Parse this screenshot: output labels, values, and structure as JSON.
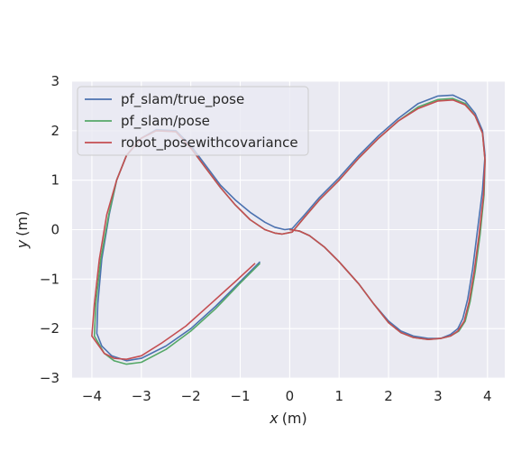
{
  "chart_data": {
    "type": "line",
    "xlabel_var": "x",
    "xlabel_unit": "(m)",
    "ylabel_var": "y",
    "ylabel_unit": "(m)",
    "xlim": [
      -4.4,
      4.35
    ],
    "ylim": [
      -3.0,
      3.0
    ],
    "xticks": [
      -4,
      -3,
      -2,
      -1,
      0,
      1,
      2,
      3,
      4
    ],
    "yticks": [
      -3,
      -2,
      -1,
      0,
      1,
      2,
      3
    ],
    "xtick_labels": [
      "−4",
      "−3",
      "−2",
      "−1",
      "0",
      "1",
      "2",
      "3",
      "4"
    ],
    "ytick_labels": [
      "−3",
      "−2",
      "−1",
      "0",
      "1",
      "2",
      "3"
    ],
    "grid": true,
    "legend_position": "top-left",
    "colors": {
      "background": "#eaeaf2",
      "grid": "#ffffff",
      "text": "#262626"
    },
    "series": [
      {
        "name": "pf_slam/true_pose",
        "color": "#4c72b0",
        "x": [
          -0.6,
          -1.0,
          -1.5,
          -2.0,
          -2.5,
          -3.0,
          -3.3,
          -3.6,
          -3.8,
          -3.9,
          -3.88,
          -3.8,
          -3.65,
          -3.5,
          -3.3,
          -3.0,
          -2.7,
          -2.3,
          -2.0,
          -1.7,
          -1.4,
          -1.1,
          -0.8,
          -0.5,
          -0.3,
          -0.1,
          0.05,
          0.3,
          0.6,
          1.0,
          1.4,
          1.8,
          2.2,
          2.6,
          3.0,
          3.3,
          3.55,
          3.75,
          3.9,
          3.95,
          3.9,
          3.8,
          3.7,
          3.6,
          3.5,
          3.4,
          3.25,
          3.05,
          2.8,
          2.5,
          2.25,
          2.0,
          1.7,
          1.4,
          1.0,
          0.7,
          0.4,
          0.2,
          0.0
        ],
        "y": [
          -0.65,
          -1.05,
          -1.55,
          -2.0,
          -2.35,
          -2.6,
          -2.65,
          -2.55,
          -2.35,
          -2.1,
          -1.5,
          -0.6,
          0.3,
          1.0,
          1.5,
          1.85,
          2.02,
          2.0,
          1.7,
          1.3,
          0.9,
          0.6,
          0.35,
          0.15,
          0.05,
          0.0,
          0.02,
          0.3,
          0.65,
          1.05,
          1.5,
          1.9,
          2.25,
          2.55,
          2.7,
          2.72,
          2.6,
          2.35,
          2.0,
          1.5,
          0.8,
          0.0,
          -0.8,
          -1.4,
          -1.8,
          -2.0,
          -2.12,
          -2.2,
          -2.2,
          -2.15,
          -2.05,
          -1.85,
          -1.5,
          -1.1,
          -0.65,
          -0.35,
          -0.12,
          -0.03,
          0.0
        ]
      },
      {
        "name": "pf_slam/pose",
        "color": "#55a868",
        "x": [
          -0.6,
          -1.0,
          -1.5,
          -2.0,
          -2.5,
          -3.0,
          -3.3,
          -3.55,
          -3.75,
          -3.95,
          -3.92,
          -3.82,
          -3.66,
          -3.5,
          -3.3,
          -3.0,
          -2.7,
          -2.3,
          -2.0,
          -1.7,
          -1.4,
          -1.1,
          -0.8,
          -0.5,
          -0.3,
          -0.15,
          0.05,
          0.3,
          0.6,
          1.0,
          1.4,
          1.8,
          2.2,
          2.6,
          3.0,
          3.3,
          3.55,
          3.75,
          3.9,
          3.95,
          3.93,
          3.85,
          3.75,
          3.65,
          3.55,
          3.42,
          3.25,
          3.05,
          2.8,
          2.5,
          2.25,
          2.0,
          1.7,
          1.4,
          1.0,
          0.7,
          0.4,
          0.2,
          0.0
        ],
        "y": [
          -0.68,
          -1.08,
          -1.6,
          -2.05,
          -2.42,
          -2.68,
          -2.72,
          -2.65,
          -2.5,
          -2.15,
          -1.5,
          -0.6,
          0.3,
          1.0,
          1.5,
          1.85,
          2.0,
          1.98,
          1.65,
          1.25,
          0.85,
          0.5,
          0.2,
          0.0,
          -0.07,
          -0.09,
          -0.05,
          0.25,
          0.6,
          1.0,
          1.45,
          1.85,
          2.2,
          2.48,
          2.63,
          2.65,
          2.55,
          2.3,
          1.95,
          1.4,
          0.7,
          -0.1,
          -0.85,
          -1.45,
          -1.85,
          -2.05,
          -2.15,
          -2.2,
          -2.22,
          -2.18,
          -2.08,
          -1.88,
          -1.5,
          -1.1,
          -0.65,
          -0.35,
          -0.12,
          -0.03,
          0.0
        ]
      },
      {
        "name": "robot_posewithcovariance",
        "color": "#c44e52",
        "x": [
          -0.7,
          -1.1,
          -1.6,
          -2.1,
          -2.6,
          -3.0,
          -3.3,
          -3.55,
          -3.75,
          -4.0,
          -3.95,
          -3.85,
          -3.7,
          -3.5,
          -3.3,
          -3.0,
          -2.7,
          -2.3,
          -2.0,
          -1.7,
          -1.4,
          -1.1,
          -0.8,
          -0.5,
          -0.3,
          -0.15,
          0.05,
          0.3,
          0.6,
          1.0,
          1.4,
          1.8,
          2.2,
          2.6,
          3.0,
          3.3,
          3.55,
          3.75,
          3.9,
          3.95,
          3.92,
          3.83,
          3.73,
          3.63,
          3.53,
          3.4,
          3.25,
          3.05,
          2.8,
          2.5,
          2.25,
          2.0,
          1.7,
          1.4,
          1.0,
          0.7,
          0.4,
          0.2,
          0.0
        ],
        "y": [
          -0.68,
          -1.05,
          -1.5,
          -1.95,
          -2.3,
          -2.55,
          -2.62,
          -2.6,
          -2.5,
          -2.15,
          -1.5,
          -0.6,
          0.3,
          1.0,
          1.5,
          1.85,
          2.0,
          1.98,
          1.65,
          1.25,
          0.85,
          0.5,
          0.2,
          0.0,
          -0.07,
          -0.09,
          -0.05,
          0.25,
          0.6,
          1.0,
          1.45,
          1.85,
          2.2,
          2.45,
          2.6,
          2.62,
          2.52,
          2.3,
          1.95,
          1.4,
          0.7,
          -0.1,
          -0.85,
          -1.45,
          -1.85,
          -2.05,
          -2.15,
          -2.2,
          -2.22,
          -2.18,
          -2.08,
          -1.88,
          -1.5,
          -1.1,
          -0.65,
          -0.35,
          -0.12,
          -0.03,
          0.0
        ]
      }
    ]
  }
}
